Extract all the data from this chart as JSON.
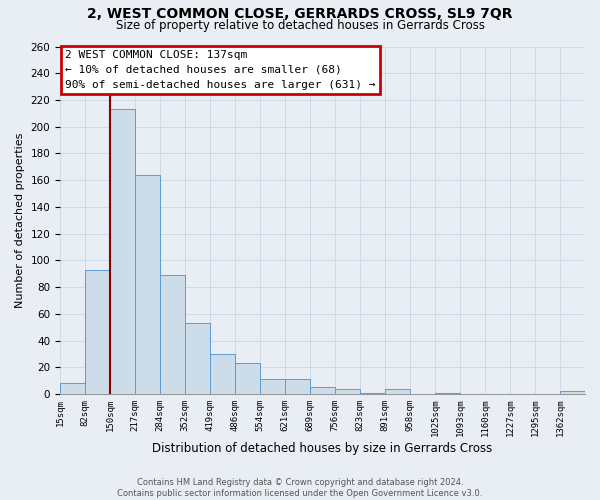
{
  "title": "2, WEST COMMON CLOSE, GERRARDS CROSS, SL9 7QR",
  "subtitle": "Size of property relative to detached houses in Gerrards Cross",
  "xlabel": "Distribution of detached houses by size in Gerrards Cross",
  "ylabel": "Number of detached properties",
  "bin_labels": [
    "15sqm",
    "82sqm",
    "150sqm",
    "217sqm",
    "284sqm",
    "352sqm",
    "419sqm",
    "486sqm",
    "554sqm",
    "621sqm",
    "689sqm",
    "756sqm",
    "823sqm",
    "891sqm",
    "958sqm",
    "1025sqm",
    "1093sqm",
    "1160sqm",
    "1227sqm",
    "1295sqm",
    "1362sqm"
  ],
  "bar_heights": [
    8,
    93,
    213,
    164,
    89,
    53,
    30,
    23,
    11,
    11,
    5,
    4,
    1,
    4,
    0,
    1,
    0,
    0,
    0,
    0,
    2
  ],
  "bar_color": "#ccdce8",
  "bar_edge_color": "#5b9bd5",
  "ylim": [
    0,
    260
  ],
  "yticks": [
    0,
    20,
    40,
    60,
    80,
    100,
    120,
    140,
    160,
    180,
    200,
    220,
    240,
    260
  ],
  "property_line_x": 2,
  "property_line_color": "#8b0000",
  "annotation_title": "2 WEST COMMON CLOSE: 137sqm",
  "annotation_line2": "← 10% of detached houses are smaller (68)",
  "annotation_line3": "90% of semi-detached houses are larger (631) →",
  "annotation_box_color": "#ffffff",
  "annotation_box_edge": "#cc0000",
  "footer_line1": "Contains HM Land Registry data © Crown copyright and database right 2024.",
  "footer_line2": "Contains public sector information licensed under the Open Government Licence v3.0.",
  "fig_facecolor": "#e8eef4",
  "plot_facecolor": "#e8eef4",
  "grid_color": "#c8d8e8"
}
